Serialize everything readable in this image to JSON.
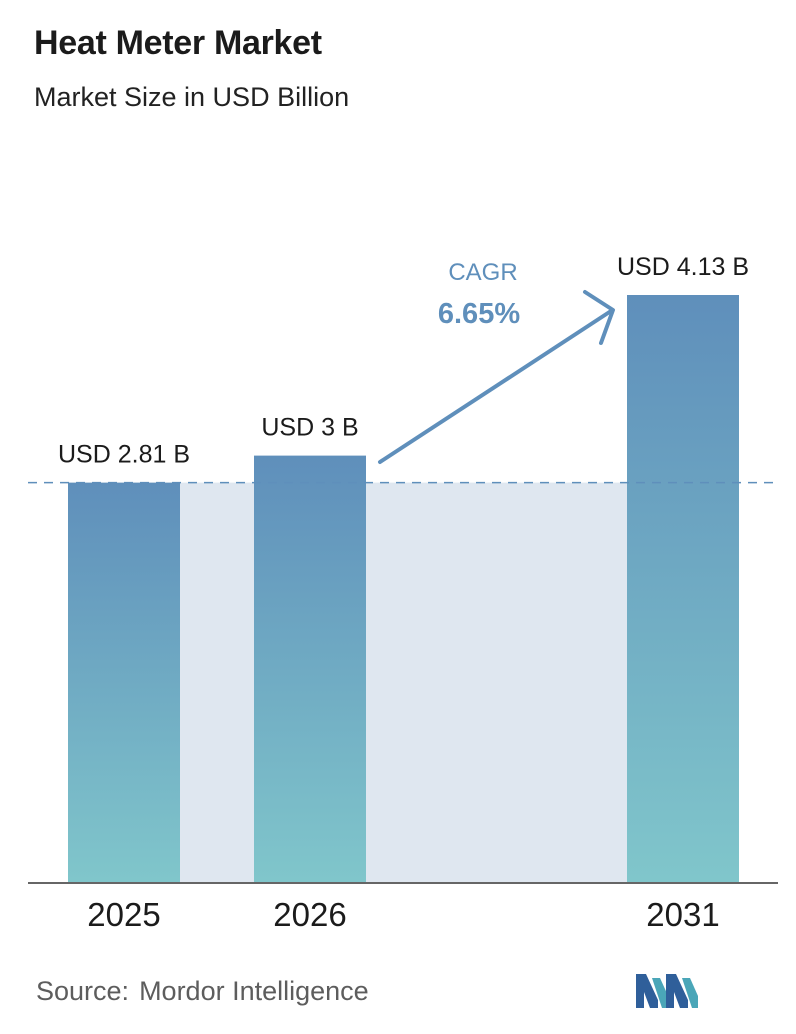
{
  "header": {
    "title": "Heat Meter Market",
    "subtitle": "Market Size in USD Billion"
  },
  "chart_data": {
    "type": "bar",
    "title": "Heat Meter Market",
    "subtitle": "Market Size in USD Billion",
    "categories": [
      "2025",
      "2026",
      "2031"
    ],
    "values": [
      2.81,
      3.0,
      4.13
    ],
    "value_labels": [
      "USD 2.81 B",
      "USD 3 B",
      "USD 4.13 B"
    ],
    "annotation": {
      "label": "CAGR",
      "value": "6.65%"
    },
    "reference_line": {
      "value": 2.81,
      "style": "dashed"
    },
    "xlabel": "",
    "ylabel": "",
    "ylim": [
      0,
      4.13
    ],
    "grid": false,
    "colors": {
      "bar_top": "#5f8fbb",
      "bar_bottom": "#80c6cb",
      "band": "#dfe7f0",
      "arrow": "#5f8fbb",
      "dashed_line": "#5f8fbb"
    }
  },
  "footer": {
    "source_label": "Source:",
    "source_name": "Mordor Intelligence",
    "logo": "mordor-intelligence-logo-icon"
  }
}
